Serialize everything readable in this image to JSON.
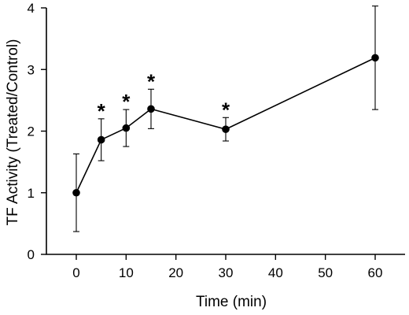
{
  "chart_data": {
    "type": "line",
    "xlabel": "Time (min)",
    "ylabel": "TF Activity (Treated/Control)",
    "xlim": [
      -6,
      66
    ],
    "ylim": [
      0,
      4
    ],
    "xticks": [
      0,
      10,
      20,
      30,
      40,
      50,
      60
    ],
    "yticks": [
      0,
      1,
      2,
      3,
      4
    ],
    "grid": false,
    "series": [
      {
        "x": [
          0,
          5,
          10,
          15,
          30,
          60
        ],
        "y": [
          1.0,
          1.86,
          2.05,
          2.36,
          2.03,
          3.19
        ],
        "err": [
          0.63,
          0.34,
          0.3,
          0.32,
          0.19,
          0.84
        ],
        "significant": [
          false,
          true,
          true,
          true,
          true,
          true
        ],
        "marker_label": "*"
      }
    ]
  }
}
